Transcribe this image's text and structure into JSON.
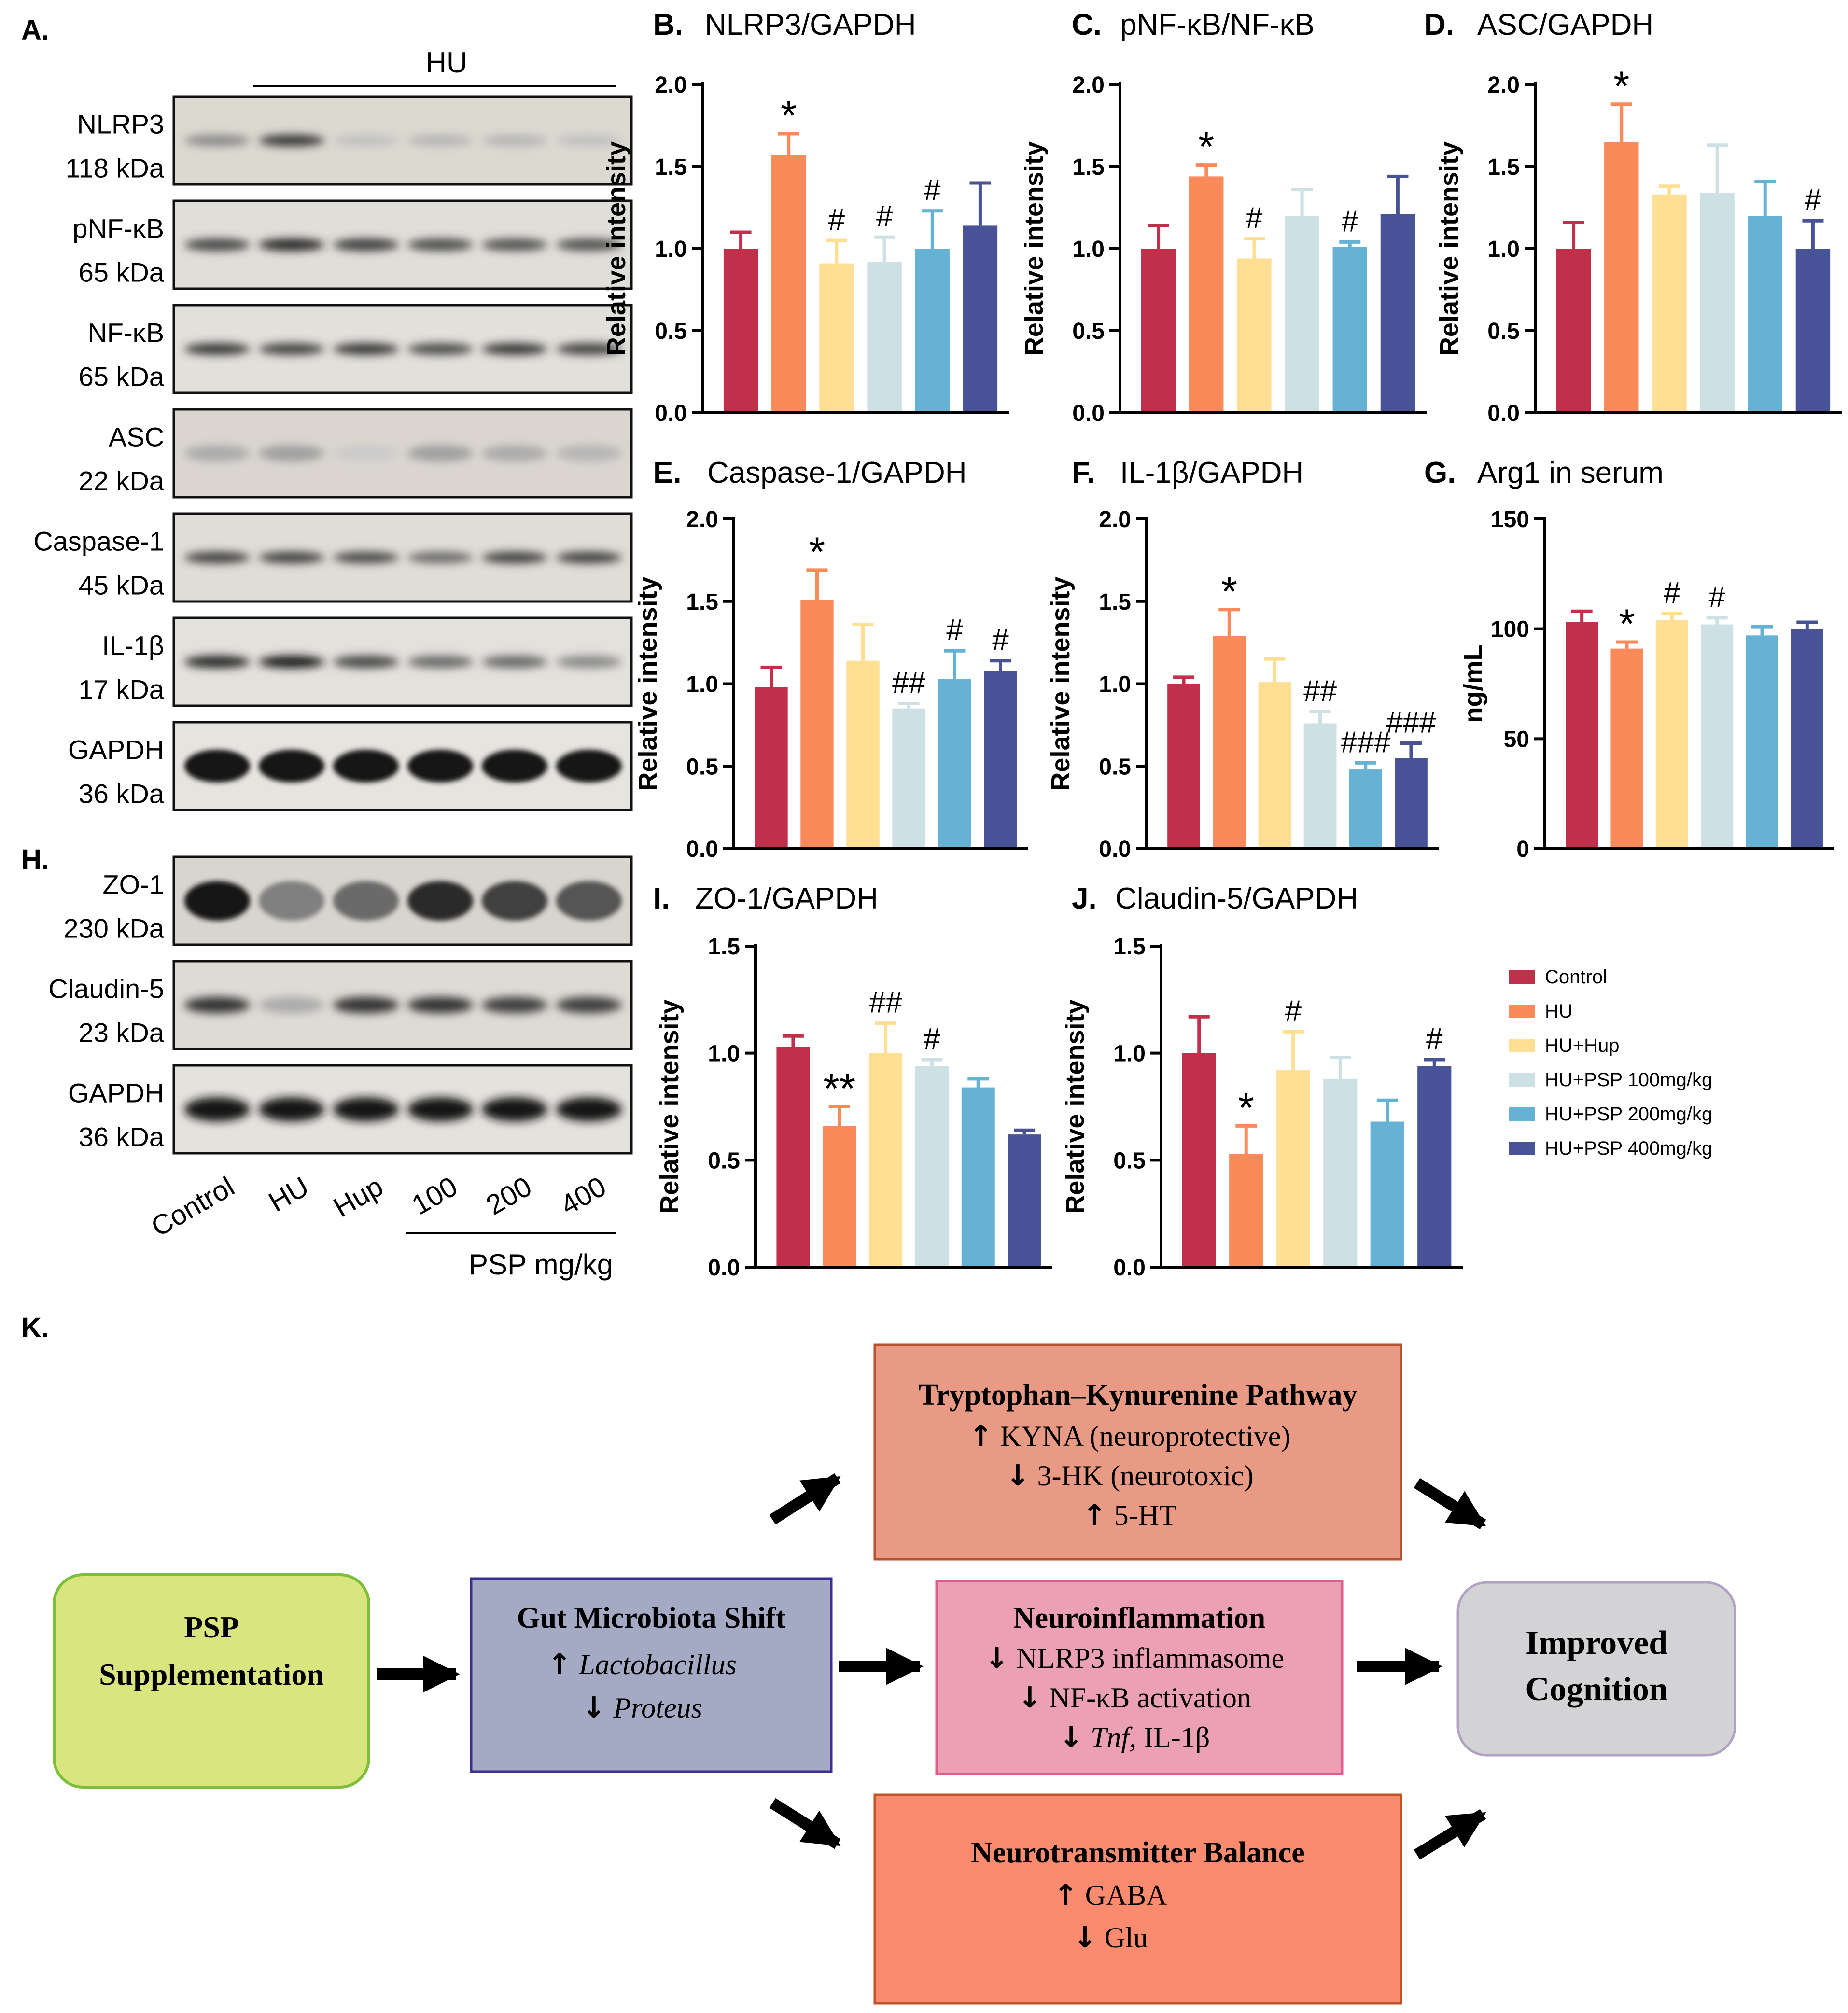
{
  "colors": {
    "control": "#c1304a",
    "hu": "#fb8a5a",
    "hup": "#ffdf94",
    "psp100": "#cde0e4",
    "psp200": "#66b2d4",
    "psp400": "#485297"
  },
  "legend": [
    "Control",
    "HU",
    "HU+Hup",
    "HU+PSP 100mg/kg",
    "HU+PSP 200mg/kg",
    "HU+PSP 400mg/kg"
  ],
  "blot": {
    "panel_a_letter": "A.",
    "hu_label": "HU",
    "bands_a": [
      {
        "name": "NLRP3",
        "size": "118 kDa"
      },
      {
        "name": "pNF-κB",
        "size": "65 kDa"
      },
      {
        "name": "NF-κB",
        "size": "65 kDa"
      },
      {
        "name": "ASC",
        "size": "22 kDa"
      },
      {
        "name": "Caspase-1",
        "size": "45 kDa"
      },
      {
        "name": "IL-1β",
        "size": "17 kDa"
      },
      {
        "name": "GAPDH",
        "size": "36 kDa"
      }
    ],
    "panel_h_letter": "H.",
    "bands_h": [
      {
        "name": "ZO-1",
        "size": "230 kDa"
      },
      {
        "name": "Claudin-5",
        "size": "23 kDa"
      },
      {
        "name": "GAPDH",
        "size": "36 kDa"
      }
    ],
    "lanes": [
      "Control",
      "HU",
      "Hup",
      "100",
      "200",
      "400"
    ],
    "psp_label": "PSP mg/kg"
  },
  "chart_data": [
    {
      "letter": "B.",
      "type": "bar",
      "title": "NLRP3/GAPDH",
      "ylabel": "Relative intensity",
      "ylim": [
        0,
        2.0
      ],
      "ticks": [
        "0.0",
        "0.5",
        "1.0",
        "1.5",
        "2.0"
      ],
      "categories": [
        "Control",
        "HU",
        "HU+Hup",
        "HU+PSP 100mg/kg",
        "HU+PSP 200mg/kg",
        "HU+PSP 400mg/kg"
      ],
      "values": [
        1.0,
        1.57,
        0.91,
        0.92,
        1.0,
        1.14
      ],
      "errors": [
        0.1,
        0.13,
        0.14,
        0.15,
        0.23,
        0.26
      ],
      "annotations": [
        "",
        "*",
        "#",
        "#",
        "#",
        ""
      ]
    },
    {
      "letter": "C.",
      "type": "bar",
      "title": "pNF-κB/NF-κB",
      "ylabel": "Relative intensity",
      "ylim": [
        0,
        2.0
      ],
      "ticks": [
        "0.0",
        "0.5",
        "1.0",
        "1.5",
        "2.0"
      ],
      "categories": [
        "Control",
        "HU",
        "HU+Hup",
        "HU+PSP 100mg/kg",
        "HU+PSP 200mg/kg",
        "HU+PSP 400mg/kg"
      ],
      "values": [
        1.0,
        1.44,
        0.94,
        1.2,
        1.01,
        1.21
      ],
      "errors": [
        0.14,
        0.07,
        0.12,
        0.16,
        0.03,
        0.23
      ],
      "annotations": [
        "",
        "*",
        "#",
        "",
        "#",
        ""
      ]
    },
    {
      "letter": "D.",
      "type": "bar",
      "title": "ASC/GAPDH",
      "ylabel": "Relative intensity",
      "ylim": [
        0,
        2.0
      ],
      "ticks": [
        "0.0",
        "0.5",
        "1.0",
        "1.5",
        "2.0"
      ],
      "categories": [
        "Control",
        "HU",
        "HU+Hup",
        "HU+PSP 100mg/kg",
        "HU+PSP 200mg/kg",
        "HU+PSP 400mg/kg"
      ],
      "values": [
        1.0,
        1.65,
        1.33,
        1.34,
        1.2,
        1.0
      ],
      "errors": [
        0.16,
        0.23,
        0.05,
        0.29,
        0.21,
        0.17
      ],
      "annotations": [
        "",
        "*",
        "",
        "",
        "",
        "#"
      ]
    },
    {
      "letter": "E.",
      "type": "bar",
      "title": "Caspase-1/GAPDH",
      "ylabel": "Relative intensity",
      "ylim": [
        0,
        2.0
      ],
      "ticks": [
        "0.0",
        "0.5",
        "1.0",
        "1.5",
        "2.0"
      ],
      "categories": [
        "Control",
        "HU",
        "HU+Hup",
        "HU+PSP 100mg/kg",
        "HU+PSP 200mg/kg",
        "HU+PSP 400mg/kg"
      ],
      "values": [
        0.98,
        1.51,
        1.14,
        0.85,
        1.03,
        1.08
      ],
      "errors": [
        0.12,
        0.18,
        0.22,
        0.03,
        0.17,
        0.06
      ],
      "annotations": [
        "",
        "*",
        "",
        "##",
        "#",
        "#"
      ]
    },
    {
      "letter": "F.",
      "type": "bar",
      "title": "IL-1β/GAPDH",
      "ylabel": "Relative intensity",
      "ylim": [
        0,
        2.0
      ],
      "ticks": [
        "0.0",
        "0.5",
        "1.0",
        "1.5",
        "2.0"
      ],
      "categories": [
        "Control",
        "HU",
        "HU+Hup",
        "HU+PSP 100mg/kg",
        "HU+PSP 200mg/kg",
        "HU+PSP 400mg/kg"
      ],
      "values": [
        1.0,
        1.29,
        1.01,
        0.76,
        0.48,
        0.55
      ],
      "errors": [
        0.04,
        0.16,
        0.14,
        0.07,
        0.04,
        0.09
      ],
      "annotations": [
        "",
        "*",
        "",
        "##",
        "###",
        "###"
      ]
    },
    {
      "letter": "G.",
      "type": "bar",
      "title": "Arg1 in serum",
      "ylabel": "ng/mL",
      "ylim": [
        0,
        150
      ],
      "ticks": [
        "0",
        "50",
        "100",
        "150"
      ],
      "categories": [
        "Control",
        "HU",
        "HU+Hup",
        "HU+PSP 100mg/kg",
        "HU+PSP 200mg/kg",
        "HU+PSP 400mg/kg"
      ],
      "values": [
        103,
        91,
        104,
        102,
        97,
        100
      ],
      "errors": [
        5,
        3,
        3,
        3,
        4,
        3
      ],
      "annotations": [
        "",
        "*",
        "#",
        "#",
        "",
        ""
      ]
    },
    {
      "letter": "I.",
      "type": "bar",
      "title": "ZO-1/GAPDH",
      "ylabel": "Relative intensity",
      "ylim": [
        0,
        1.5
      ],
      "ticks": [
        "0.0",
        "0.5",
        "1.0",
        "1.5"
      ],
      "categories": [
        "Control",
        "HU",
        "HU+Hup",
        "HU+PSP 100mg/kg",
        "HU+PSP 200mg/kg",
        "HU+PSP 400mg/kg"
      ],
      "values": [
        1.03,
        0.66,
        1.0,
        0.94,
        0.84,
        0.62
      ],
      "errors": [
        0.05,
        0.09,
        0.14,
        0.03,
        0.04,
        0.02
      ],
      "annotations": [
        "",
        "**",
        "##",
        "#",
        "",
        ""
      ]
    },
    {
      "letter": "J.",
      "type": "bar",
      "title": "Claudin-5/GAPDH",
      "ylabel": "Relative intensity",
      "ylim": [
        0,
        1.5
      ],
      "ticks": [
        "0.0",
        "0.5",
        "1.0",
        "1.5"
      ],
      "categories": [
        "Control",
        "HU",
        "HU+Hup",
        "HU+PSP 100mg/kg",
        "HU+PSP 200mg/kg",
        "HU+PSP 400mg/kg"
      ],
      "values": [
        1.0,
        0.53,
        0.92,
        0.88,
        0.68,
        0.94
      ],
      "errors": [
        0.17,
        0.13,
        0.18,
        0.1,
        0.1,
        0.03
      ],
      "annotations": [
        "",
        "*",
        "#",
        "",
        "",
        "#"
      ]
    }
  ],
  "diagram": {
    "panel_letter": "K.",
    "psp": {
      "line1": "PSP",
      "line2": "Supplementation"
    },
    "gut": {
      "title": "Gut Microbiota Shift",
      "items": [
        {
          "dir": "up",
          "text": "Lactobacillus"
        },
        {
          "dir": "down",
          "text": "Proteus"
        }
      ]
    },
    "trp": {
      "title": "Tryptophan–Kynurenine Pathway",
      "items": [
        {
          "dir": "up",
          "text": "KYNA (neuroprotective)"
        },
        {
          "dir": "down",
          "text": "3-HK (neurotoxic)"
        },
        {
          "dir": "up",
          "text": "5-HT"
        }
      ]
    },
    "neuro": {
      "title": "Neuroinflammation",
      "items": [
        {
          "dir": "down",
          "text": "NLRP3 inflammasome"
        },
        {
          "dir": "down",
          "text": "NF-κB activation"
        },
        {
          "dir": "down",
          "text_italic": "Tnf,",
          "text": " IL-1β"
        }
      ]
    },
    "nt": {
      "title": "Neurotransmitter Balance",
      "items": [
        {
          "dir": "up",
          "text": "GABA"
        },
        {
          "dir": "down",
          "text": "Glu"
        }
      ]
    },
    "cog": {
      "line1": "Improved",
      "line2": "Cognition"
    }
  }
}
